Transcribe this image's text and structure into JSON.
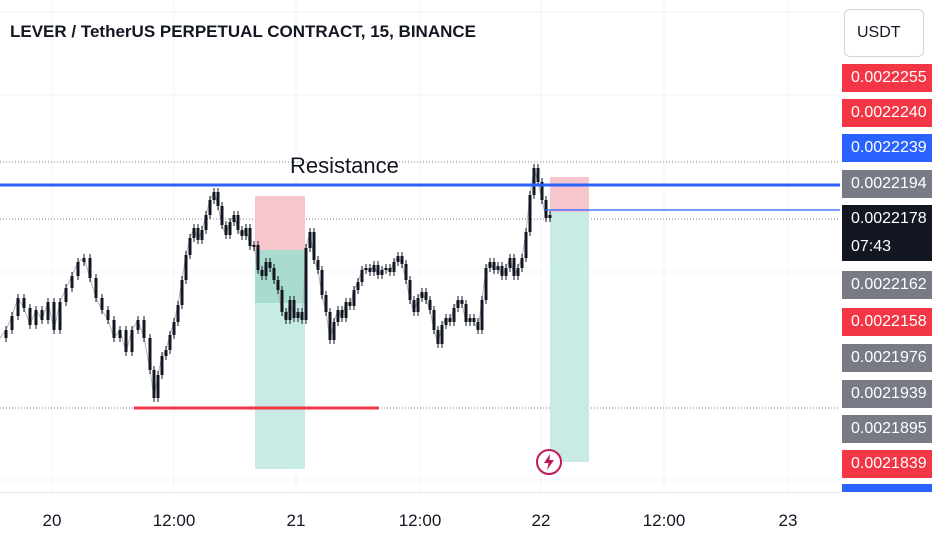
{
  "header": {
    "title": "LEVER / TetherUS PERPETUAL CONTRACT, 15, BINANCE",
    "currency_button": "USDT"
  },
  "annotations": {
    "resistance_label": "Resistance"
  },
  "price_axis": {
    "labels": [
      {
        "value": "0.0022255",
        "color": "#f23645"
      },
      {
        "value": "0.0022240",
        "color": "#f23645"
      },
      {
        "value": "0.0022239",
        "color": "#2962ff"
      },
      {
        "value": "0.0022194",
        "color": "#787b86"
      },
      {
        "value": "0.0022178",
        "color": "#131722"
      },
      {
        "value": "07:43",
        "color": "#131722"
      },
      {
        "value": "0.0022162",
        "color": "#787b86"
      },
      {
        "value": "0.0022158",
        "color": "#f23645"
      },
      {
        "value": "0.0021976",
        "color": "#787b86"
      },
      {
        "value": "0.0021939",
        "color": "#787b86"
      },
      {
        "value": "0.0021895",
        "color": "#787b86"
      },
      {
        "value": "0.0021839",
        "color": "#f23645"
      }
    ]
  },
  "time_axis": {
    "labels": [
      "20",
      "12:00",
      "21",
      "12:00",
      "22",
      "12:00",
      "23"
    ]
  },
  "icons": {
    "alert": "lightning-bolt-icon"
  },
  "colors": {
    "candle": "#131722",
    "resistance_line": "#2962ff",
    "support_line": "#f23645",
    "stop_zone": "#f7c5cc",
    "target_zone": "#c8ebe3",
    "target_zone_entry": "#a9dccf"
  }
}
